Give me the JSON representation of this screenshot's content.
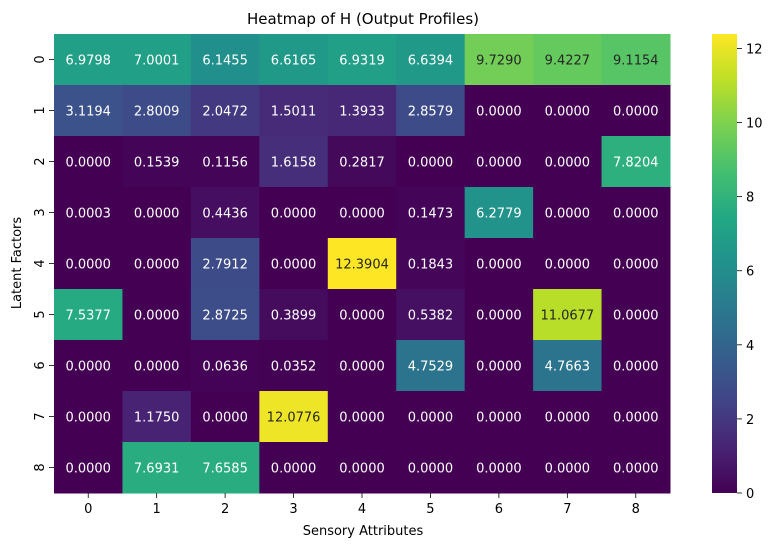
{
  "chart_data": {
    "type": "heatmap",
    "title": "Heatmap of H (Output Profiles)",
    "xlabel": "Sensory Attributes",
    "ylabel": "Latent Factors",
    "x_categories": [
      "0",
      "1",
      "2",
      "3",
      "4",
      "5",
      "6",
      "7",
      "8"
    ],
    "y_categories": [
      "0",
      "1",
      "2",
      "3",
      "4",
      "5",
      "6",
      "7",
      "8"
    ],
    "values": [
      [
        6.9798,
        7.0001,
        6.1455,
        6.6165,
        6.9319,
        6.6394,
        9.729,
        9.4227,
        9.1154
      ],
      [
        3.1194,
        2.8009,
        2.0472,
        1.5011,
        1.3933,
        2.8579,
        0.0,
        0.0,
        0.0
      ],
      [
        0.0,
        0.1539,
        0.1156,
        1.6158,
        0.2817,
        0.0,
        0.0,
        0.0,
        7.8204
      ],
      [
        0.0003,
        0.0,
        0.4436,
        0.0,
        0.0,
        0.1473,
        6.2779,
        0.0,
        0.0
      ],
      [
        0.0,
        0.0,
        2.7912,
        0.0,
        12.3904,
        0.1843,
        0.0,
        0.0,
        0.0
      ],
      [
        7.5377,
        0.0,
        2.8725,
        0.3899,
        0.0,
        0.5382,
        0.0,
        11.0677,
        0.0
      ],
      [
        0.0,
        0.0,
        0.0636,
        0.0352,
        0.0,
        4.7529,
        0.0,
        4.7663,
        0.0
      ],
      [
        0.0,
        1.175,
        0.0,
        12.0776,
        0.0,
        0.0,
        0.0,
        0.0,
        0.0
      ],
      [
        0.0,
        7.6931,
        7.6585,
        0.0,
        0.0,
        0.0,
        0.0,
        0.0,
        0.0
      ]
    ],
    "value_labels": [
      [
        "6.9798",
        "7.0001",
        "6.1455",
        "6.6165",
        "6.9319",
        "6.6394",
        "9.7290",
        "9.4227",
        "9.1154"
      ],
      [
        "3.1194",
        "2.8009",
        "2.0472",
        "1.5011",
        "1.3933",
        "2.8579",
        "0.0000",
        "0.0000",
        "0.0000"
      ],
      [
        "0.0000",
        "0.1539",
        "0.1156",
        "1.6158",
        "0.2817",
        "0.0000",
        "0.0000",
        "0.0000",
        "7.8204"
      ],
      [
        "0.0003",
        "0.0000",
        "0.4436",
        "0.0000",
        "0.0000",
        "0.1473",
        "6.2779",
        "0.0000",
        "0.0000"
      ],
      [
        "0.0000",
        "0.0000",
        "2.7912",
        "0.0000",
        "12.3904",
        "0.1843",
        "0.0000",
        "0.0000",
        "0.0000"
      ],
      [
        "7.5377",
        "0.0000",
        "2.8725",
        "0.3899",
        "0.0000",
        "0.5382",
        "0.0000",
        "11.0677",
        "0.0000"
      ],
      [
        "0.0000",
        "0.0000",
        "0.0636",
        "0.0352",
        "0.0000",
        "4.7529",
        "0.0000",
        "4.7663",
        "0.0000"
      ],
      [
        "0.0000",
        "1.1750",
        "0.0000",
        "12.0776",
        "0.0000",
        "0.0000",
        "0.0000",
        "0.0000",
        "0.0000"
      ],
      [
        "0.0000",
        "7.6931",
        "7.6585",
        "0.0000",
        "0.0000",
        "0.0000",
        "0.0000",
        "0.0000",
        "0.0000"
      ]
    ],
    "colormap": "viridis",
    "vmin": 0,
    "vmax": 12.3904,
    "colorbar_ticks": [
      0,
      2,
      4,
      6,
      8,
      10,
      12
    ],
    "colorbar_tick_labels": [
      "0",
      "2",
      "4",
      "6",
      "8",
      "10",
      "12"
    ]
  }
}
